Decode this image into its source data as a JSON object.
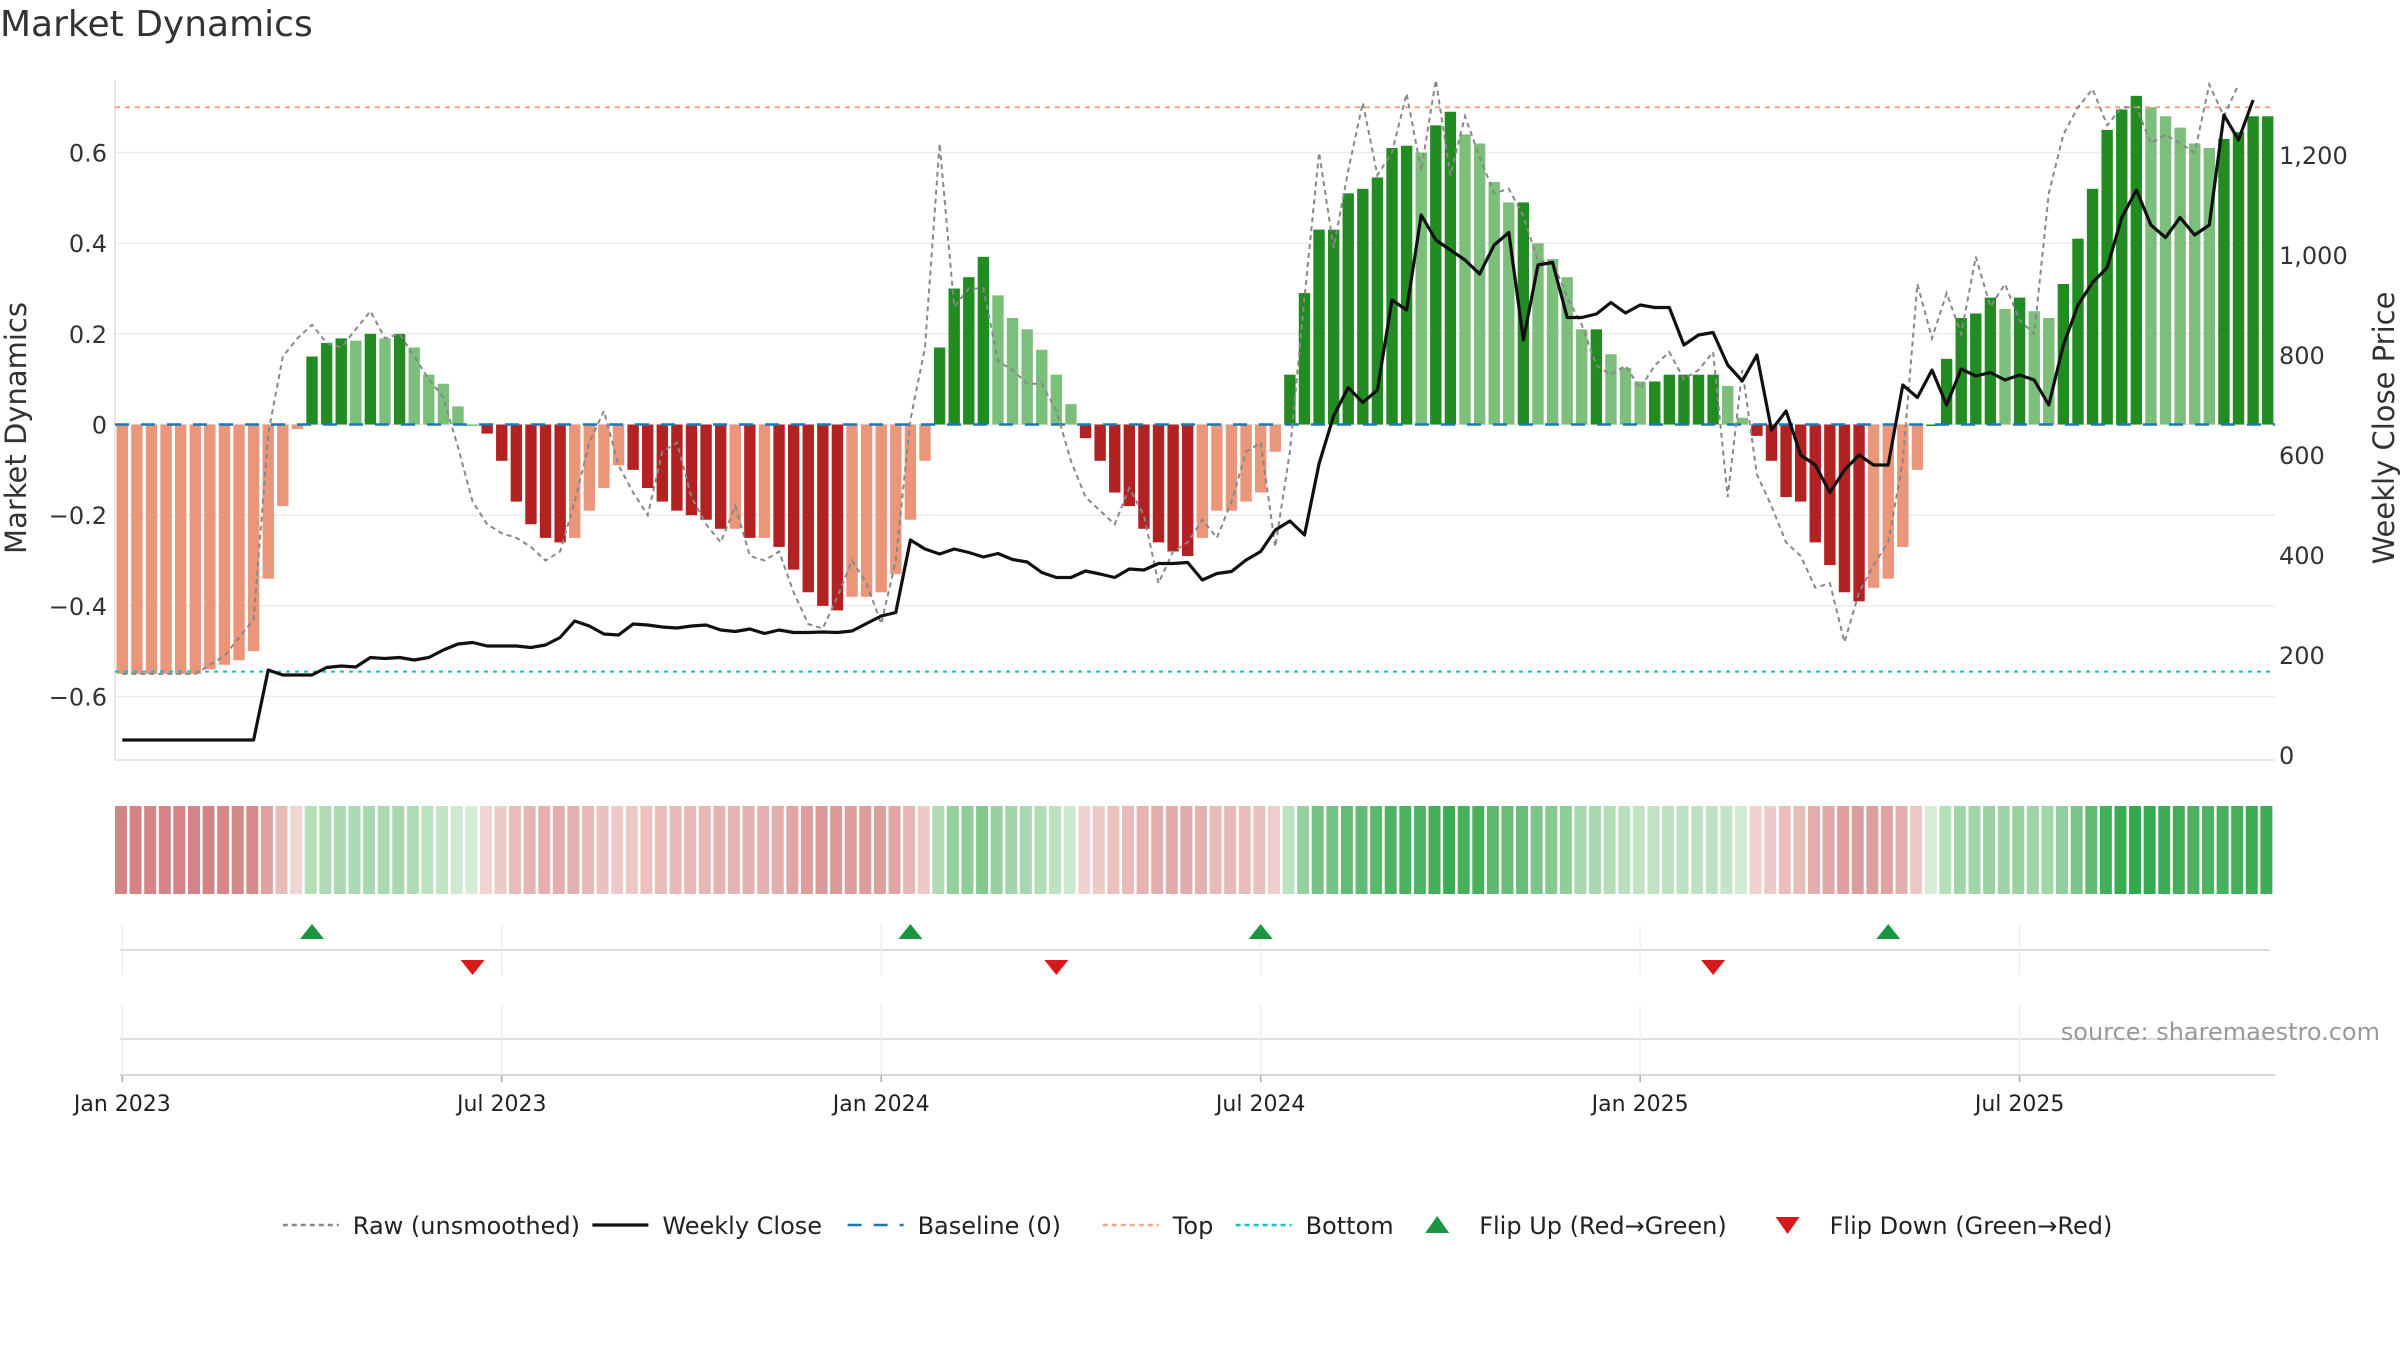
{
  "chart_data": {
    "type": "bar",
    "title": "Market Dynamics",
    "ylabel_left": "Market Dynamics",
    "ylabel_right": "Weekly Close Price",
    "ylim_left": [
      -0.74,
      0.76
    ],
    "ylim_right": [
      -10,
      1350
    ],
    "left_ticks": [
      0.6,
      0.4,
      0.2,
      0,
      -0.2,
      -0.4,
      -0.6
    ],
    "left_tick_labels": [
      "0.6",
      "0.4",
      "0.2",
      "0",
      "−0.2",
      "−0.4",
      "−0.6"
    ],
    "right_ticks": [
      1200,
      1000,
      800,
      600,
      400,
      200,
      0
    ],
    "right_tick_labels": [
      "1,200",
      "1,000",
      "800",
      "600",
      "400",
      "200",
      "0"
    ],
    "x_ticks": [
      {
        "week": 1,
        "label": "Jan 2023"
      },
      {
        "week": 27,
        "label": "Jul 2023"
      },
      {
        "week": 53,
        "label": "Jan 2024"
      },
      {
        "week": 79,
        "label": "Jul 2024"
      },
      {
        "week": 105,
        "label": "Jan 2025"
      },
      {
        "week": 131,
        "label": "Jul 2025"
      }
    ],
    "top_level": 0.7,
    "bottom_level": -0.545,
    "baseline": 0,
    "grid": true,
    "colors": {
      "strong_green": "#228B22",
      "light_green": "#7BBF7B",
      "strong_red": "#B22222",
      "light_red": "#E9967A",
      "raw": "#888888",
      "close": "#111111",
      "baseline": "#1F77B4",
      "top": "#F4A582",
      "bottom": "#17BECF",
      "flip_up": "#1A9641",
      "flip_down": "#D7191C"
    },
    "series": [
      {
        "name": "Market Dynamics",
        "values": [
          -0.55,
          -0.55,
          -0.55,
          -0.55,
          -0.55,
          -0.55,
          -0.54,
          -0.53,
          -0.52,
          -0.5,
          -0.34,
          -0.18,
          -0.01,
          0.15,
          0.18,
          0.19,
          0.185,
          0.2,
          0.19,
          0.2,
          0.17,
          0.11,
          0.09,
          0.04,
          0.0,
          -0.02,
          -0.08,
          -0.17,
          -0.22,
          -0.25,
          -0.26,
          -0.25,
          -0.19,
          -0.14,
          -0.09,
          -0.1,
          -0.14,
          -0.17,
          -0.19,
          -0.2,
          -0.21,
          -0.23,
          -0.23,
          -0.25,
          -0.25,
          -0.27,
          -0.32,
          -0.37,
          -0.4,
          -0.41,
          -0.38,
          -0.38,
          -0.37,
          -0.33,
          -0.21,
          -0.08,
          0.17,
          0.3,
          0.325,
          0.37,
          0.285,
          0.235,
          0.21,
          0.165,
          0.11,
          0.045,
          -0.03,
          -0.08,
          -0.15,
          -0.18,
          -0.23,
          -0.26,
          -0.28,
          -0.29,
          -0.25,
          -0.19,
          -0.19,
          -0.17,
          -0.15,
          -0.06,
          0.11,
          0.29,
          0.43,
          0.43,
          0.51,
          0.52,
          0.545,
          0.61,
          0.615,
          0.6,
          0.66,
          0.69,
          0.64,
          0.62,
          0.535,
          0.49,
          0.49,
          0.4,
          0.365,
          0.325,
          0.21,
          0.21,
          0.155,
          0.125,
          0.095,
          0.095,
          0.11,
          0.11,
          0.11,
          0.11,
          0.085,
          0.015,
          -0.025,
          -0.08,
          -0.16,
          -0.17,
          -0.26,
          -0.31,
          -0.37,
          -0.39,
          -0.36,
          -0.34,
          -0.27,
          -0.1,
          0.0,
          0.145,
          0.235,
          0.245,
          0.28,
          0.255,
          0.28,
          0.25,
          0.235,
          0.31,
          0.41,
          0.52,
          0.65,
          0.695,
          0.725,
          0.7,
          0.68,
          0.655,
          0.62,
          0.61,
          0.63,
          0.645,
          0.68,
          0.68
        ]
      },
      {
        "name": "Raw (unsmoothed)",
        "values": [
          -0.55,
          -0.55,
          -0.55,
          -0.55,
          -0.55,
          -0.55,
          -0.53,
          -0.51,
          -0.47,
          -0.43,
          -0.02,
          0.15,
          0.19,
          0.22,
          0.18,
          0.17,
          0.21,
          0.25,
          0.19,
          0.2,
          0.15,
          0.1,
          0.06,
          -0.05,
          -0.17,
          -0.22,
          -0.24,
          -0.25,
          -0.27,
          -0.3,
          -0.28,
          -0.17,
          -0.04,
          0.03,
          -0.09,
          -0.15,
          -0.2,
          -0.06,
          -0.04,
          -0.16,
          -0.22,
          -0.26,
          -0.18,
          -0.29,
          -0.3,
          -0.28,
          -0.37,
          -0.44,
          -0.45,
          -0.38,
          -0.3,
          -0.35,
          -0.44,
          -0.3,
          0.01,
          0.17,
          0.62,
          0.26,
          0.3,
          0.3,
          0.14,
          0.12,
          0.09,
          0.09,
          0.03,
          -0.08,
          -0.16,
          -0.19,
          -0.22,
          -0.14,
          -0.2,
          -0.35,
          -0.28,
          -0.26,
          -0.21,
          -0.25,
          -0.17,
          -0.06,
          -0.04,
          -0.27,
          -0.06,
          0.28,
          0.6,
          0.39,
          0.56,
          0.71,
          0.55,
          0.6,
          0.73,
          0.56,
          0.76,
          0.55,
          0.68,
          0.59,
          0.51,
          0.52,
          0.46,
          0.36,
          0.36,
          0.28,
          0.22,
          0.13,
          0.11,
          0.13,
          0.08,
          0.13,
          0.16,
          0.1,
          0.12,
          0.16,
          -0.16,
          0.12,
          -0.11,
          -0.18,
          -0.26,
          -0.29,
          -0.36,
          -0.35,
          -0.48,
          -0.37,
          -0.31,
          -0.26,
          -0.08,
          0.31,
          0.19,
          0.29,
          0.2,
          0.37,
          0.26,
          0.31,
          0.23,
          0.2,
          0.51,
          0.64,
          0.7,
          0.74,
          0.66,
          0.7,
          0.7,
          0.62,
          0.64,
          0.62,
          0.6,
          0.75,
          0.68,
          0.75
        ]
      },
      {
        "name": "Weekly Close",
        "values": [
          30,
          30,
          30,
          30,
          30,
          30,
          30,
          30,
          30,
          30,
          170,
          160,
          160,
          160,
          175,
          178,
          176,
          195,
          193,
          195,
          190,
          195,
          210,
          222,
          225,
          218,
          218,
          218,
          215,
          220,
          235,
          268,
          258,
          242,
          240,
          262,
          260,
          256,
          254,
          258,
          260,
          250,
          247,
          252,
          243,
          250,
          245,
          245,
          246,
          245,
          248,
          263,
          278,
          285,
          430,
          412,
          402,
          412,
          405,
          396,
          403,
          391,
          386,
          365,
          355,
          355,
          368,
          362,
          355,
          372,
          370,
          383,
          383,
          385,
          350,
          363,
          367,
          390,
          407,
          450,
          468,
          440,
          583,
          678,
          735,
          705,
          730,
          910,
          890,
          1080,
          1030,
          1010,
          990,
          962,
          1020,
          1045,
          830,
          980,
          985,
          875,
          875,
          882,
          905,
          884,
          900,
          895,
          895,
          820,
          840,
          845,
          780,
          748,
          800,
          650,
          688,
          600,
          580,
          525,
          570,
          600,
          580,
          580,
          740,
          715,
          770,
          700,
          772,
          758,
          765,
          750,
          760,
          750,
          700,
          820,
          900,
          945,
          975,
          1075,
          1130,
          1060,
          1035,
          1075,
          1040,
          1060,
          1280,
          1230,
          1310
        ]
      }
    ],
    "momentum_strip": [
      -0.55,
      -0.55,
      -0.55,
      -0.55,
      -0.55,
      -0.55,
      -0.54,
      -0.53,
      -0.52,
      -0.5,
      -0.34,
      -0.18,
      -0.01,
      0.15,
      0.18,
      0.19,
      0.185,
      0.2,
      0.19,
      0.2,
      0.17,
      0.11,
      0.09,
      0.04,
      0.0,
      -0.02,
      -0.08,
      -0.17,
      -0.22,
      -0.25,
      -0.26,
      -0.25,
      -0.19,
      -0.14,
      -0.09,
      -0.1,
      -0.14,
      -0.17,
      -0.19,
      -0.2,
      -0.21,
      -0.23,
      -0.23,
      -0.25,
      -0.25,
      -0.27,
      -0.32,
      -0.37,
      -0.4,
      -0.41,
      -0.38,
      -0.38,
      -0.37,
      -0.33,
      -0.21,
      -0.08,
      0.17,
      0.3,
      0.325,
      0.37,
      0.285,
      0.235,
      0.21,
      0.165,
      0.11,
      0.045,
      -0.03,
      -0.08,
      -0.15,
      -0.18,
      -0.23,
      -0.26,
      -0.28,
      -0.29,
      -0.25,
      -0.19,
      -0.19,
      -0.17,
      -0.15,
      -0.06,
      0.11,
      0.29,
      0.43,
      0.43,
      0.51,
      0.52,
      0.545,
      0.61,
      0.615,
      0.6,
      0.66,
      0.69,
      0.64,
      0.62,
      0.535,
      0.49,
      0.49,
      0.4,
      0.365,
      0.325,
      0.21,
      0.21,
      0.155,
      0.125,
      0.095,
      0.095,
      0.11,
      0.11,
      0.11,
      0.11,
      0.085,
      0.015,
      -0.025,
      -0.08,
      -0.16,
      -0.17,
      -0.26,
      -0.31,
      -0.37,
      -0.39,
      -0.36,
      -0.34,
      -0.27,
      -0.1,
      0.0,
      0.145,
      0.235,
      0.245,
      0.28,
      0.255,
      0.28,
      0.25,
      0.235,
      0.31,
      0.41,
      0.52,
      0.65,
      0.695,
      0.725,
      0.7,
      0.68,
      0.655,
      0.62,
      0.61,
      0.63,
      0.645,
      0.68,
      0.68
    ],
    "flips": [
      {
        "week": 14,
        "direction": "up"
      },
      {
        "week": 25,
        "direction": "down"
      },
      {
        "week": 55,
        "direction": "up"
      },
      {
        "week": 65,
        "direction": "down"
      },
      {
        "week": 79,
        "direction": "up"
      },
      {
        "week": 110,
        "direction": "down"
      },
      {
        "week": 122,
        "direction": "up"
      }
    ],
    "legend": [
      {
        "key": "raw",
        "label": "Raw (unsmoothed)",
        "style": "dotted-line"
      },
      {
        "key": "close",
        "label": "Weekly Close",
        "style": "solid-line"
      },
      {
        "key": "baseline",
        "label": "Baseline (0)",
        "style": "dashed-line"
      },
      {
        "key": "top",
        "label": "Top",
        "style": "dotted-line"
      },
      {
        "key": "bottom",
        "label": "Bottom",
        "style": "dotted-line"
      },
      {
        "key": "flip_up",
        "label": "Flip Up (Red→Green)",
        "style": "triangle-up"
      },
      {
        "key": "flip_down",
        "label": "Flip Down (Green→Red)",
        "style": "triangle-down"
      }
    ],
    "legend_position": "bottom-center",
    "source": "source: sharemaestro.com"
  }
}
